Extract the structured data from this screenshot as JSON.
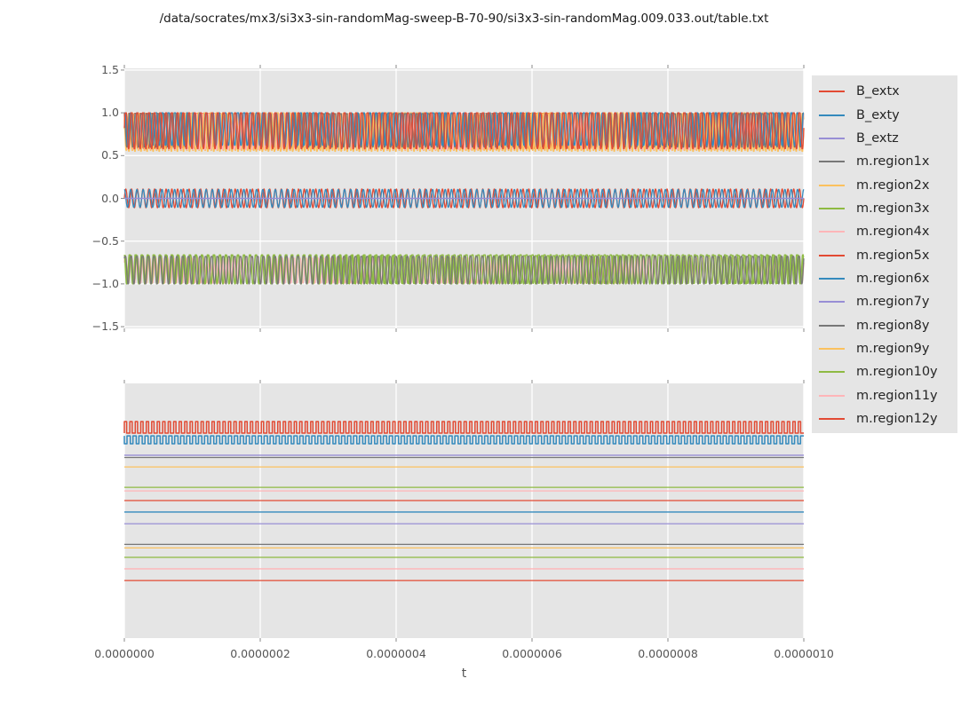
{
  "figure": {
    "title": "/data/socrates/mx3/si3x3-sin-randomMag-sweep-B-70-90/si3x3-sin-randomMag.009.033.out/table.txt",
    "xlabel": "t"
  },
  "style": {
    "fig_bg": "#ffffff",
    "axes_bg": "#e5e5e5",
    "grid_color": "#ffffff",
    "tick_mark_color": "#8a8a8a",
    "tick_label_color": "#555555",
    "title_color": "#1a1a1a",
    "legend_bg": "#e5e5e5",
    "palette": {
      "red": "#E24A33",
      "blue": "#348ABD",
      "purple": "#988ED5",
      "gray": "#777777",
      "orange": "#FBC15E",
      "green": "#8EBA42",
      "pink": "#FFB5B8"
    }
  },
  "legend": {
    "entries": [
      {
        "label": "B_extx",
        "color": "#E24A33"
      },
      {
        "label": "B_exty",
        "color": "#348ABD"
      },
      {
        "label": "B_extz",
        "color": "#988ED5"
      },
      {
        "label": "m.region1x",
        "color": "#777777"
      },
      {
        "label": "m.region2x",
        "color": "#FBC15E"
      },
      {
        "label": "m.region3x",
        "color": "#8EBA42"
      },
      {
        "label": "m.region4x",
        "color": "#FFB5B8"
      },
      {
        "label": "m.region5x",
        "color": "#E24A33"
      },
      {
        "label": "m.region6x",
        "color": "#348ABD"
      },
      {
        "label": "m.region7y",
        "color": "#988ED5"
      },
      {
        "label": "m.region8y",
        "color": "#777777"
      },
      {
        "label": "m.region9y",
        "color": "#FBC15E"
      },
      {
        "label": "m.region10y",
        "color": "#8EBA42"
      },
      {
        "label": "m.region11y",
        "color": "#FFB5B8"
      },
      {
        "label": "m.region12y",
        "color": "#E24A33"
      }
    ]
  },
  "chart_data": [
    {
      "id": "top",
      "type": "line",
      "xlim": [
        0,
        1e-06
      ],
      "ylim": [
        -1.5,
        1.5
      ],
      "xticks": [
        0,
        2e-07,
        4e-07,
        6e-07,
        8e-07,
        1e-06
      ],
      "yticks": [
        1.5,
        1.0,
        0.5,
        0.0,
        -0.5,
        -1.0,
        -1.5
      ],
      "ytick_labels": [
        "1.5",
        "1.0",
        "0.5",
        "0.0",
        "−0.5",
        "−1.0",
        "−1.5"
      ],
      "grid": "both",
      "note_bands": "three oscillation bands: ~0.55..1.0, ~-0.11..0.11 around 0, ~-1.0..-0.66",
      "series": [
        {
          "name": "B_extx",
          "color": "#E24A33",
          "wave": "sine",
          "mean": 0,
          "amp": 0.11,
          "freq": 118,
          "phase": 0,
          "z": 12
        },
        {
          "name": "B_exty",
          "color": "#348ABD",
          "wave": "sine",
          "mean": 0,
          "amp": 0.105,
          "freq": 108,
          "phase": 1.57,
          "z": 13
        },
        {
          "name": "B_extz",
          "color": "#988ED5",
          "wave": "const",
          "value": 0,
          "z": 15
        },
        {
          "name": "m.region1x",
          "color": "#777777",
          "wave": "band",
          "lo": -1.0,
          "hi": -0.68,
          "freq": 118,
          "phase": 0.6,
          "z": 11
        },
        {
          "name": "m.region2x",
          "color": "#FBC15E",
          "wave": "band",
          "lo": 0.55,
          "hi": 1.0,
          "freq": 112,
          "phase": 0.0,
          "z": 6
        },
        {
          "name": "m.region3x",
          "color": "#8EBA42",
          "wave": "band",
          "lo": -1.0,
          "hi": -0.66,
          "freq": 113,
          "phase": 2.2,
          "z": 9
        },
        {
          "name": "m.region4x",
          "color": "#FFB5B8",
          "wave": "band",
          "lo": 0.57,
          "hi": 0.99,
          "freq": 115,
          "phase": 0.9,
          "z": 5
        },
        {
          "name": "m.region5x",
          "color": "#E24A33",
          "wave": "band",
          "lo": 0.58,
          "hi": 1.0,
          "freq": 118,
          "phase": 0.0,
          "z": 10
        },
        {
          "name": "m.region6x",
          "color": "#348ABD",
          "wave": "band",
          "lo": 0.62,
          "hi": 1.0,
          "freq": 108,
          "phase": 1.3,
          "z": 8
        },
        {
          "name": "m.region7y",
          "color": "#988ED5",
          "wave": "const",
          "value": 0,
          "z": 14
        },
        {
          "name": "m.region8y",
          "color": "#777777",
          "wave": "band",
          "lo": 0.6,
          "hi": 0.99,
          "freq": 116,
          "phase": 2.0,
          "z": 7
        },
        {
          "name": "m.region9y",
          "color": "#FBC15E",
          "wave": "band",
          "lo": 0.56,
          "hi": 0.99,
          "freq": 112,
          "phase": 2.7,
          "z": 4
        },
        {
          "name": "m.region10y",
          "color": "#8EBA42",
          "wave": "band",
          "lo": -0.995,
          "hi": -0.67,
          "freq": 114,
          "phase": 1.1,
          "z": 3
        },
        {
          "name": "m.region11y",
          "color": "#FFB5B8",
          "wave": "band",
          "lo": -0.99,
          "hi": -0.7,
          "freq": 113,
          "phase": 0.4,
          "z": 2
        },
        {
          "name": "m.region12y",
          "color": "#E24A33",
          "wave": "band",
          "lo": 0.585,
          "hi": 0.995,
          "freq": 120,
          "phase": 2.4,
          "z": 1
        }
      ]
    },
    {
      "id": "bottom",
      "type": "line",
      "xlim": [
        0,
        1e-06
      ],
      "xticks": [
        0,
        2e-07,
        4e-07,
        6e-07,
        8e-07,
        1e-06
      ],
      "xtick_labels": [
        "0.0000000",
        "0.0000002",
        "0.0000004",
        "0.0000006",
        "0.0000008",
        "0.0000010"
      ],
      "yticks_shown": false,
      "grid": "x",
      "y_units": "axis-fraction (no y tick labels shown in figure)",
      "series": [
        {
          "name": "B_extx",
          "color": "#E24A33",
          "wave": "square",
          "base": 0.805,
          "peak": 0.85,
          "freq": 124,
          "duty": 0.42,
          "z": 15
        },
        {
          "name": "B_exty",
          "color": "#348ABD",
          "wave": "square",
          "base": 0.794,
          "peak": 0.763,
          "freq": 114,
          "duty": 0.45,
          "z": 14
        },
        {
          "name": "B_extz",
          "color": "#988ED5",
          "wave": "const",
          "value": 0.718,
          "z": 13
        },
        {
          "name": "m.region1x",
          "color": "#777777",
          "wave": "const",
          "value": 0.709,
          "z": 12
        },
        {
          "name": "m.region2x",
          "color": "#FBC15E",
          "wave": "const",
          "value": 0.672,
          "z": 11
        },
        {
          "name": "m.region3x",
          "color": "#8EBA42",
          "wave": "const",
          "value": 0.592,
          "z": 10
        },
        {
          "name": "m.region4x",
          "color": "#FFB5B8",
          "wave": "const",
          "value": 0.578,
          "z": 9
        },
        {
          "name": "m.region5x",
          "color": "#E24A33",
          "wave": "const",
          "value": 0.54,
          "z": 8
        },
        {
          "name": "m.region6x",
          "color": "#348ABD",
          "wave": "const",
          "value": 0.495,
          "z": 7
        },
        {
          "name": "m.region7y",
          "color": "#988ED5",
          "wave": "const",
          "value": 0.449,
          "z": 6
        },
        {
          "name": "m.region8y",
          "color": "#777777",
          "wave": "const",
          "value": 0.368,
          "z": 5
        },
        {
          "name": "m.region9y",
          "color": "#FBC15E",
          "wave": "const",
          "value": 0.354,
          "z": 4
        },
        {
          "name": "m.region10y",
          "color": "#8EBA42",
          "wave": "const",
          "value": 0.317,
          "z": 3
        },
        {
          "name": "m.region11y",
          "color": "#FFB5B8",
          "wave": "const",
          "value": 0.272,
          "z": 2
        },
        {
          "name": "m.region12y",
          "color": "#E24A33",
          "wave": "const",
          "value": 0.226,
          "z": 1
        }
      ]
    }
  ]
}
